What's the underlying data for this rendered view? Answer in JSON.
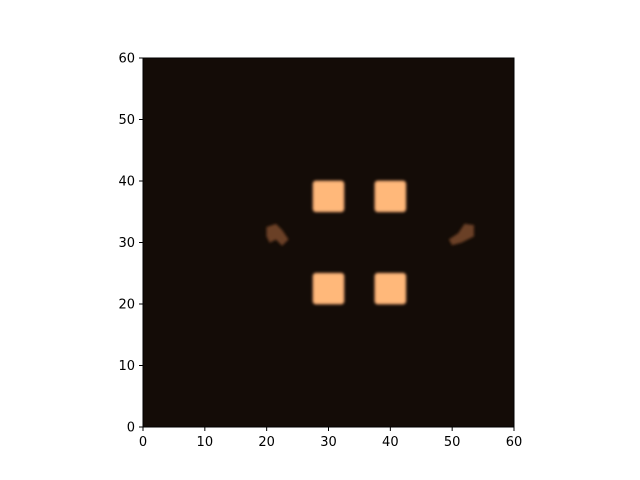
{
  "chart_data": {
    "type": "heatmap",
    "title": "",
    "xlabel": "",
    "ylabel": "",
    "xlim": [
      0,
      60
    ],
    "ylim": [
      0,
      60
    ],
    "xticks": [
      "0",
      "10",
      "20",
      "30",
      "40",
      "50",
      "60"
    ],
    "yticks": [
      "0",
      "10",
      "20",
      "30",
      "40",
      "50",
      "60"
    ],
    "grid": false,
    "legend": "none",
    "colormap": "copper",
    "colors": {
      "background": "#140c07",
      "high": "#ffb87a",
      "low_feature": "#6a3f28",
      "axis": "#000000"
    },
    "squares": [
      {
        "x": [
          27.5,
          32.5
        ],
        "y": [
          35,
          40
        ],
        "intensity": 1.0
      },
      {
        "x": [
          37.5,
          42.5
        ],
        "y": [
          35,
          40
        ],
        "intensity": 1.0
      },
      {
        "x": [
          27.5,
          32.5
        ],
        "y": [
          20,
          25
        ],
        "intensity": 1.0
      },
      {
        "x": [
          37.5,
          42.5
        ],
        "y": [
          20,
          25
        ],
        "intensity": 1.0
      }
    ],
    "blobs": [
      {
        "points": [
          [
            20,
            32.5
          ],
          [
            21.5,
            33
          ],
          [
            22.5,
            32
          ],
          [
            23.5,
            30.5
          ],
          [
            22.5,
            29.5
          ],
          [
            21.5,
            30.5
          ],
          [
            20.5,
            30
          ],
          [
            20,
            31
          ]
        ],
        "intensity": 0.38
      },
      {
        "points": [
          [
            49.5,
            30.5
          ],
          [
            51,
            31.5
          ],
          [
            52,
            33
          ],
          [
            53.5,
            32.8
          ],
          [
            53.5,
            31
          ],
          [
            51.5,
            30
          ],
          [
            50,
            29.6
          ]
        ],
        "intensity": 0.38
      }
    ]
  }
}
